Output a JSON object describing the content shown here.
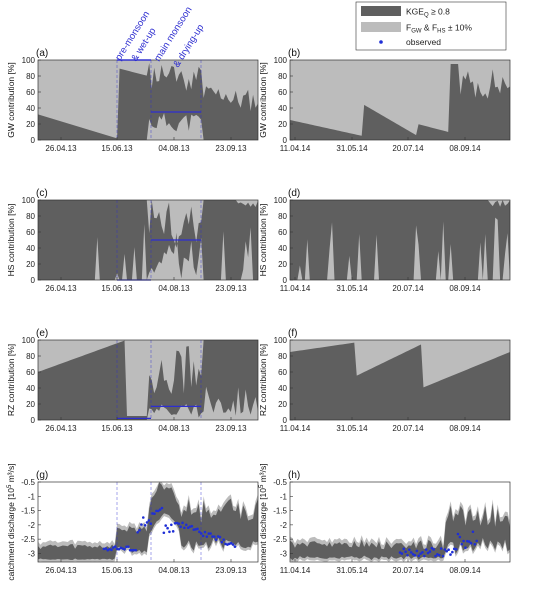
{
  "legend": {
    "items": [
      {
        "label": "KGE",
        "sub": "Q",
        "suffix": " ≥ 0.8",
        "color": "#5f5f5f"
      },
      {
        "label": "F",
        "sub": "GW",
        "suffix": " & F",
        "sub2": "HS",
        "suffix2": " ± 10%",
        "color": "#bcbcbc"
      },
      {
        "label": "observed",
        "color": "#1f2fd6"
      }
    ]
  },
  "colors": {
    "dark": "#5f5f5f",
    "light": "#bcbcbc",
    "observed": "#1f2fd6",
    "phase": "#2d2dd0"
  },
  "phase_labels": [
    "pre-monsoon",
    "& wet-up",
    "main monsoon",
    "& drying-up"
  ],
  "chart_data": [
    {
      "panel": "(a)",
      "type": "area",
      "ylabel": "GW contribution [%]",
      "ylim": [
        0,
        100
      ],
      "yticks": [
        "0",
        "20",
        "40",
        "60",
        "80",
        "100"
      ],
      "xticks": [
        "26.04.13",
        "15.06.13",
        "04.08.13",
        "23.09.13"
      ]
    },
    {
      "panel": "(b)",
      "type": "area",
      "ylabel": "GW contribution [%]",
      "ylim": [
        0,
        100
      ],
      "yticks": [
        "0",
        "20",
        "40",
        "60",
        "80",
        "100"
      ],
      "xticks": [
        "11.04.14",
        "31.05.14",
        "20.07.14",
        "08.09.14"
      ]
    },
    {
      "panel": "(c)",
      "type": "area",
      "ylabel": "HS contribution [%]",
      "ylim": [
        0,
        100
      ],
      "yticks": [
        "0",
        "20",
        "40",
        "60",
        "80",
        "100"
      ],
      "xticks": [
        "26.04.13",
        "15.06.13",
        "04.08.13",
        "23.09.13"
      ]
    },
    {
      "panel": "(d)",
      "type": "area",
      "ylabel": "HS contribution [%]",
      "ylim": [
        0,
        100
      ],
      "yticks": [
        "0",
        "20",
        "40",
        "60",
        "80",
        "100"
      ],
      "xticks": [
        "11.04.14",
        "31.05.14",
        "20.07.14",
        "08.09.14"
      ]
    },
    {
      "panel": "(e)",
      "type": "area",
      "ylabel": "RZ contribution [%]",
      "ylim": [
        0,
        100
      ],
      "yticks": [
        "0",
        "20",
        "40",
        "60",
        "80",
        "100"
      ],
      "xticks": [
        "26.04.13",
        "15.06.13",
        "04.08.13",
        "23.09.13"
      ]
    },
    {
      "panel": "(f)",
      "type": "area",
      "ylabel": "RZ contribution [%]",
      "ylim": [
        0,
        100
      ],
      "yticks": [
        "0",
        "20",
        "40",
        "60",
        "80",
        "100"
      ],
      "xticks": [
        "11.04.14",
        "31.05.14",
        "20.07.14",
        "08.09.14"
      ]
    },
    {
      "panel": "(g)",
      "type": "area",
      "ylabel": "catchment discharge [10",
      "ylabel_sup": "5",
      "ylabel_end": " m³/s]",
      "ylim": [
        -3.3,
        -0.5
      ],
      "yticks": [
        "-3",
        "-2.5",
        "-2",
        "-1.5",
        "-1",
        "-0.5"
      ],
      "xticks": [
        "26.04.13",
        "15.06.13",
        "04.08.13",
        "23.09.13"
      ]
    },
    {
      "panel": "(h)",
      "type": "area",
      "ylabel": "catchment discharge [10",
      "ylabel_sup": "5",
      "ylabel_end": " m³/s]",
      "ylim": [
        -3.3,
        -0.5
      ],
      "yticks": [
        "-3",
        "-2.5",
        "-2",
        "-1.5",
        "-1",
        "-0.5"
      ],
      "xticks": [
        "11.04.14",
        "31.05.14",
        "20.07.14",
        "08.09.14"
      ]
    }
  ]
}
